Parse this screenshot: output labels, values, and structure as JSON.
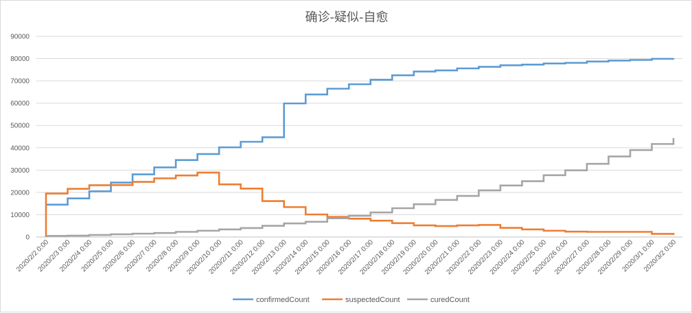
{
  "chart_data": {
    "type": "line",
    "step": true,
    "title": "确诊-疑似-自愈",
    "xlabel": "",
    "ylabel": "",
    "ylim": [
      0,
      90000
    ],
    "yticks": [
      0,
      10000,
      20000,
      30000,
      40000,
      50000,
      60000,
      70000,
      80000,
      90000
    ],
    "grid": true,
    "legend_position": "bottom",
    "categories": [
      "2020/2/2 0:00",
      "2020/2/3 0:00",
      "2020/2/4 0:00",
      "2020/2/5 0:00",
      "2020/2/6 0:00",
      "2020/2/7 0:00",
      "2020/2/8 0:00",
      "2020/2/9 0:00",
      "2020/2/10 0:00",
      "2020/2/11 0:00",
      "2020/2/12 0:00",
      "2020/2/13 0:00",
      "2020/2/14 0:00",
      "2020/2/15 0:00",
      "2020/2/16 0:00",
      "2020/2/17 0:00",
      "2020/2/18 0:00",
      "2020/2/19 0:00",
      "2020/2/20 0:00",
      "2020/2/21 0:00",
      "2020/2/22 0:00",
      "2020/2/23 0:00",
      "2020/2/24 0:00",
      "2020/2/25 0:00",
      "2020/2/26 0:00",
      "2020/2/27 0:00",
      "2020/2/28 0:00",
      "2020/2/29 0:00",
      "2020/3/1 0:00",
      "2020/3/2 0:00"
    ],
    "series": [
      {
        "name": "confirmedCount",
        "color": "#5b9bd5",
        "values": [
          14500,
          17300,
          20500,
          24400,
          28100,
          31200,
          34500,
          37200,
          40200,
          42700,
          44700,
          59900,
          63900,
          66500,
          68500,
          70500,
          72500,
          74200,
          74700,
          75600,
          76300,
          77000,
          77300,
          77800,
          78100,
          78700,
          79100,
          79400,
          79900,
          80100
        ]
      },
      {
        "name": "suspectedCount",
        "color": "#ed7d31",
        "values": [
          19500,
          21600,
          23200,
          23300,
          24700,
          26300,
          27600,
          28900,
          23600,
          21700,
          16100,
          13400,
          10100,
          9000,
          8200,
          7300,
          6200,
          5200,
          4900,
          5200,
          5400,
          4100,
          3400,
          2800,
          2400,
          2300,
          2300,
          2300,
          1400,
          900
        ]
      },
      {
        "name": "curedCount",
        "color": "#a5a5a5",
        "values": [
          500,
          600,
          900,
          1200,
          1500,
          1800,
          2300,
          2800,
          3400,
          4000,
          5000,
          6100,
          6800,
          8400,
          9500,
          11000,
          12900,
          14700,
          16600,
          18400,
          20900,
          23100,
          25000,
          27700,
          29900,
          32800,
          36100,
          39000,
          41700,
          44400
        ]
      }
    ]
  }
}
